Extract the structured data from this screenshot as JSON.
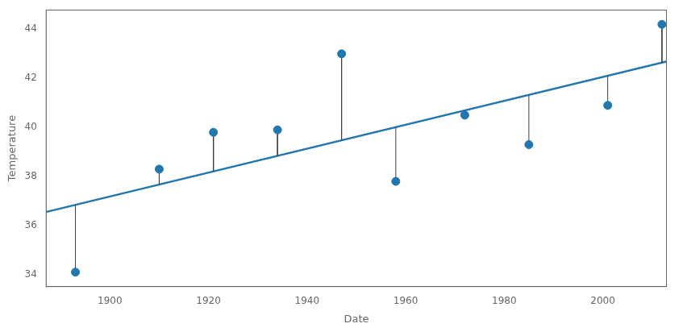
{
  "chart_data": {
    "type": "scatter",
    "xlabel": "Date",
    "ylabel": "Temperature",
    "x": [
      1893,
      1910,
      1921,
      1934,
      1947,
      1958,
      1972,
      1985,
      2001,
      2012
    ],
    "values": [
      34.1,
      38.3,
      39.8,
      39.9,
      43.0,
      37.8,
      40.5,
      39.3,
      40.9,
      44.2
    ],
    "color": "#2176ae",
    "trend": {
      "x": [
        1887,
        2013
      ],
      "values": [
        36.55,
        42.688
      ],
      "color": "#2176ae"
    },
    "stems": {
      "values": [
        36.842,
        37.671,
        38.206,
        38.84,
        39.473,
        40.009,
        40.691,
        41.324,
        42.104,
        42.64
      ],
      "color": "#404040"
    },
    "xlim": [
      1887,
      2013
    ],
    "ylim": [
      33.5,
      44.8
    ],
    "xticks": [
      1900,
      1920,
      1940,
      1960,
      1980,
      2000
    ],
    "yticks": [
      34,
      36,
      38,
      40,
      42,
      44
    ],
    "grid": false
  }
}
